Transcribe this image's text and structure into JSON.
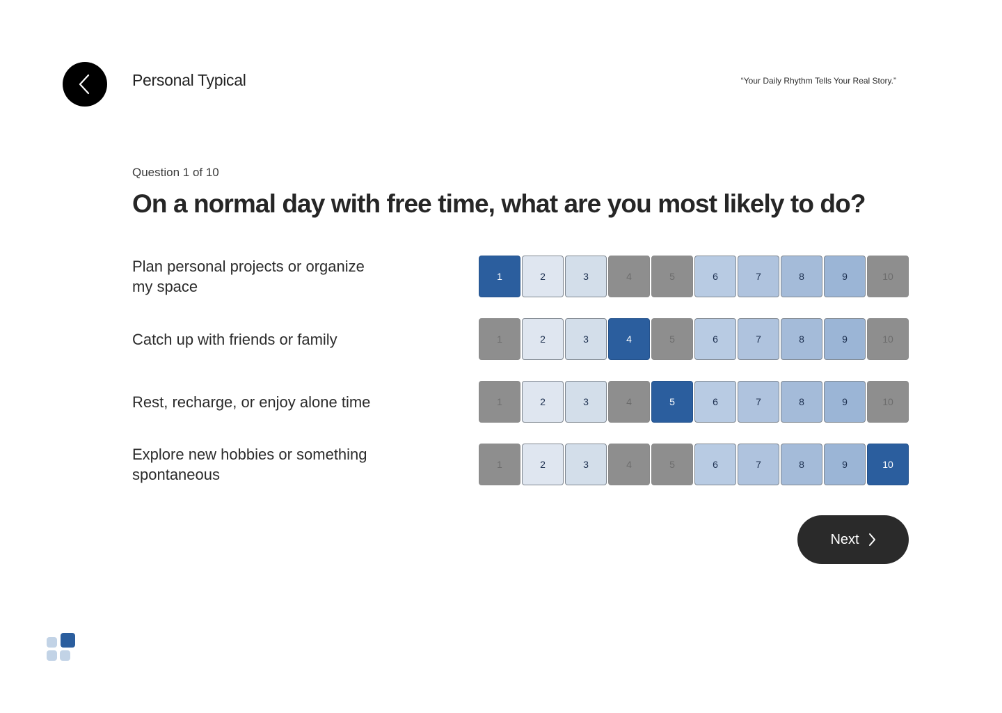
{
  "header": {
    "title": "Personal Typical",
    "tagline": "“Your Daily Rhythm Tells Your Real Story.”",
    "back_icon": "chevron-left-icon"
  },
  "question": {
    "counter": "Question 1 of 10",
    "text": "On a normal day with free time, what are you most likely to do?"
  },
  "options": [
    {
      "label": "Plan personal projects or organize my space",
      "selected": 1,
      "disabled": [
        4,
        5,
        10
      ]
    },
    {
      "label": "Catch up with friends or family",
      "selected": 4,
      "disabled": [
        1,
        5,
        10
      ]
    },
    {
      "label": "Rest, recharge, or enjoy alone time",
      "selected": 5,
      "disabled": [
        1,
        4,
        10
      ]
    },
    {
      "label": "Explore new hobbies or something spontaneous",
      "selected": 10,
      "disabled": [
        1,
        4,
        5
      ]
    }
  ],
  "scale": {
    "values": [
      "1",
      "2",
      "3",
      "4",
      "5",
      "6",
      "7",
      "8",
      "9",
      "10"
    ],
    "shade_colors": [
      "#dfe6f0",
      "#dfe6f0",
      "#d3deea",
      "#c6d4e6",
      "#c6d4e6",
      "#b8cbe3",
      "#afc3de",
      "#a4bbd9",
      "#9bb5d6",
      "#93afd3"
    ],
    "selected_color": "#2b5e9e",
    "disabled_color": "#8e8e8e"
  },
  "actions": {
    "next_label": "Next",
    "next_icon": "chevron-right-icon"
  },
  "brand": {
    "logo_icon": "tiles-logo-icon",
    "colors": [
      "#2b5e9e",
      "#c2d3e6",
      "#c2d3e6",
      "#c2d3e6"
    ]
  }
}
